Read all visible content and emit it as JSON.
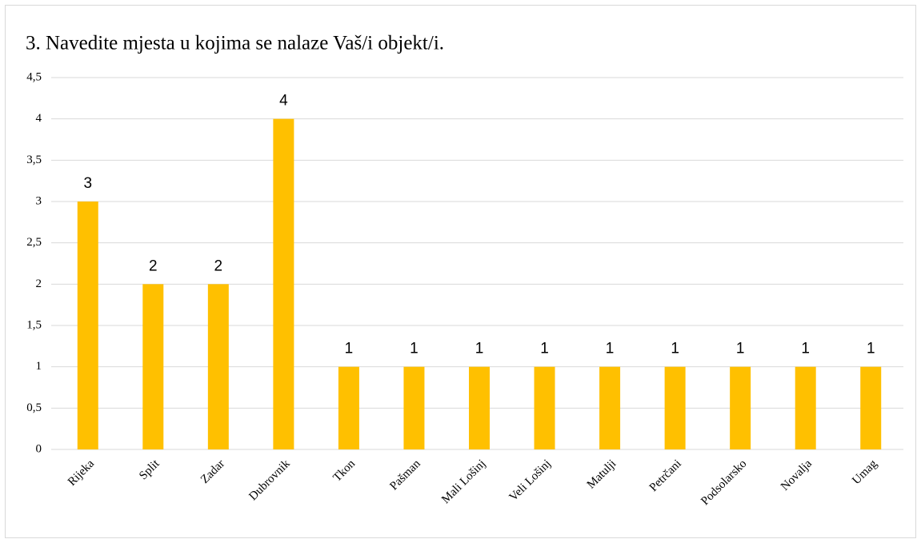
{
  "chart_data": {
    "type": "bar",
    "title": "3. Navedite mjesta u kojima se nalaze Vaš/i objekt/i.",
    "categories": [
      "Rijeka",
      "Split",
      "Zadar",
      "Dubrovnik",
      "Tkon",
      "Pašman",
      "Mali Lošinj",
      "Veli Lošinj",
      "Matulji",
      "Petrčani",
      "Podsolarsko",
      "Novalja",
      "Umag"
    ],
    "values": [
      3,
      2,
      2,
      4,
      1,
      1,
      1,
      1,
      1,
      1,
      1,
      1,
      1
    ],
    "color": "#ffc000",
    "ylim": [
      0,
      4.5
    ],
    "yticks": [
      0,
      {
        "value": 0.5,
        "label": "0,5"
      },
      1,
      {
        "value": 1.5,
        "label": "1,5"
      },
      2,
      {
        "value": 2.5,
        "label": "2,5"
      },
      3,
      {
        "value": 3.5,
        "label": "3,5"
      },
      4,
      {
        "value": 4.5,
        "label": "4,5"
      }
    ],
    "grid": true
  }
}
